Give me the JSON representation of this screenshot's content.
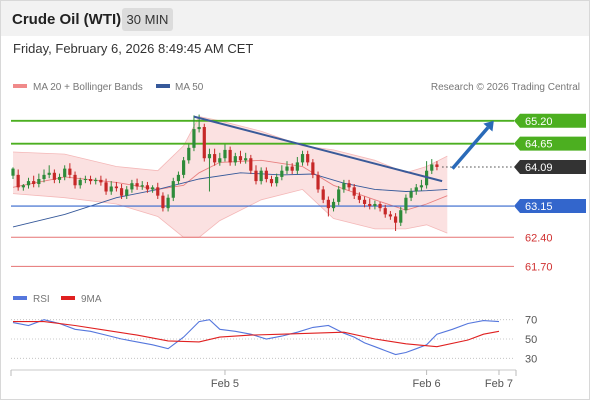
{
  "header": {
    "title": "Crude Oil (WTI)",
    "timeframe": "30 MIN"
  },
  "datetime": "Friday, February 6, 2026 8:49:45 AM CET",
  "legend": {
    "ma20": "MA 20 + Bollinger Bands",
    "ma50": "MA 50",
    "credit": "Research © 2026 Trading Central"
  },
  "rsi_legend": {
    "rsi": "RSI",
    "ma9": "9MA"
  },
  "colors": {
    "up": "#2e8b3a",
    "down": "#c62828",
    "resistance": "#4caf20",
    "support": "#3366cc",
    "red_level": "#e57373",
    "current": "#333333",
    "ma50": "#36599a",
    "band": "#fadcdc",
    "trend": "#3a5a99",
    "arrow": "#2a6ab8",
    "rsi": "#5577dd",
    "rsi_ma": "#e02020"
  },
  "chart_data": [
    {
      "type": "candlestick",
      "ylim": [
        61.3,
        65.7
      ],
      "levels": [
        {
          "label": "65.20",
          "value": 65.2,
          "kind": "resistance"
        },
        {
          "label": "64.65",
          "value": 64.65,
          "kind": "resistance"
        },
        {
          "label": "64.09",
          "value": 64.09,
          "kind": "current"
        },
        {
          "label": "63.15",
          "value": 63.15,
          "kind": "support"
        },
        {
          "label": "62.40",
          "value": 62.4,
          "kind": "red"
        },
        {
          "label": "61.70",
          "value": 61.7,
          "kind": "red"
        }
      ],
      "x_ticks": [
        {
          "label": "Feb 5",
          "index": 41
        },
        {
          "label": "Feb 6",
          "index": 80
        },
        {
          "label": "Feb 7",
          "index": 94
        }
      ],
      "candles": [
        [
          63.88,
          64.05,
          63.9
        ],
        [
          63.9,
          63.6,
          64.0
        ],
        [
          63.6,
          63.65,
          63.5
        ],
        [
          63.65,
          63.75,
          63.8
        ],
        [
          63.75,
          63.68,
          63.85
        ],
        [
          63.68,
          63.8,
          63.9
        ],
        [
          63.8,
          63.9,
          64.0
        ],
        [
          63.9,
          63.95,
          64.1
        ],
        [
          63.95,
          63.78,
          64.0
        ],
        [
          63.78,
          63.85,
          63.9
        ],
        [
          63.85,
          64.05,
          64.1
        ],
        [
          64.05,
          63.9,
          64.15
        ],
        [
          63.9,
          63.65,
          63.95
        ],
        [
          63.65,
          63.78,
          63.8
        ],
        [
          63.78,
          63.8,
          63.85
        ],
        [
          63.8,
          63.75,
          63.85
        ],
        [
          63.75,
          63.78,
          63.8
        ],
        [
          63.78,
          63.72,
          63.85
        ],
        [
          63.72,
          63.5,
          63.78
        ],
        [
          63.5,
          63.62,
          63.72
        ],
        [
          63.62,
          63.58,
          63.7
        ],
        [
          63.58,
          63.4,
          63.65
        ],
        [
          63.4,
          63.55,
          63.6
        ],
        [
          63.55,
          63.7,
          63.75
        ],
        [
          63.7,
          63.62,
          63.78
        ],
        [
          63.62,
          63.65,
          63.72
        ],
        [
          63.65,
          63.55,
          63.7
        ],
        [
          63.55,
          63.6,
          63.62
        ],
        [
          63.6,
          63.4,
          63.68
        ],
        [
          63.4,
          63.1,
          63.45
        ],
        [
          63.1,
          63.35,
          63.4
        ],
        [
          63.35,
          63.75,
          63.8
        ],
        [
          63.75,
          63.9,
          63.95
        ],
        [
          63.9,
          64.25,
          64.3
        ],
        [
          64.25,
          64.55,
          64.6
        ],
        [
          64.55,
          65.0,
          65.3
        ],
        [
          65.0,
          65.05,
          65.1
        ],
        [
          65.05,
          64.3,
          65.1
        ],
        [
          64.3,
          64.4,
          64.5
        ],
        [
          64.4,
          64.2,
          64.5
        ],
        [
          64.2,
          64.3,
          64.4
        ],
        [
          64.3,
          64.5,
          64.6
        ],
        [
          64.5,
          64.2,
          64.55
        ],
        [
          64.2,
          64.35,
          64.4
        ],
        [
          64.35,
          64.25,
          64.45
        ],
        [
          64.25,
          64.3,
          64.4
        ],
        [
          64.3,
          64.0,
          64.35
        ],
        [
          64.0,
          63.75,
          64.1
        ],
        [
          63.75,
          64.0,
          64.05
        ],
        [
          64.0,
          63.8,
          64.05
        ],
        [
          63.8,
          63.7,
          63.85
        ],
        [
          63.7,
          63.85,
          63.9
        ],
        [
          63.85,
          64.0,
          64.1
        ],
        [
          64.0,
          64.1,
          64.2
        ],
        [
          64.1,
          64.0,
          64.15
        ],
        [
          64.0,
          64.2,
          64.3
        ],
        [
          64.2,
          64.4,
          64.45
        ],
        [
          64.4,
          64.2,
          64.45
        ],
        [
          64.2,
          63.9,
          64.25
        ],
        [
          63.9,
          63.55,
          63.95
        ],
        [
          63.55,
          63.3,
          63.6
        ],
        [
          63.3,
          63.1,
          63.35
        ],
        [
          63.1,
          63.25,
          63.3
        ],
        [
          63.25,
          63.55,
          63.6
        ],
        [
          63.55,
          63.7,
          63.75
        ],
        [
          63.7,
          63.6,
          63.75
        ],
        [
          63.6,
          63.4,
          63.65
        ],
        [
          63.4,
          63.3,
          63.45
        ],
        [
          63.3,
          63.2,
          63.35
        ],
        [
          63.2,
          63.15,
          63.3
        ],
        [
          63.15,
          63.2,
          63.25
        ],
        [
          63.2,
          63.1,
          63.22
        ],
        [
          63.1,
          62.95,
          63.15
        ],
        [
          62.95,
          62.9,
          63.0
        ],
        [
          62.9,
          62.75,
          62.95
        ],
        [
          62.75,
          63.05,
          63.1
        ],
        [
          63.05,
          63.35,
          63.4
        ],
        [
          63.35,
          63.5,
          63.55
        ],
        [
          63.5,
          63.6,
          63.65
        ],
        [
          63.6,
          63.65,
          63.75
        ],
        [
          63.65,
          64.0,
          64.2
        ],
        [
          64.0,
          64.15,
          64.25
        ],
        [
          64.15,
          64.09,
          64.2
        ]
      ],
      "candle_extremes": [
        {
          "index": 36,
          "high": 65.35
        },
        {
          "index": 38,
          "low": 63.5
        },
        {
          "index": 61,
          "low": 62.9
        },
        {
          "index": 74,
          "low": 62.55
        }
      ],
      "bb_upper": [
        [
          0,
          64.45
        ],
        [
          10,
          64.4
        ],
        [
          20,
          64.1
        ],
        [
          28,
          64.0
        ],
        [
          33,
          64.6
        ],
        [
          36,
          65.3
        ],
        [
          40,
          65.2
        ],
        [
          48,
          64.95
        ],
        [
          56,
          64.6
        ],
        [
          62,
          64.5
        ],
        [
          70,
          64.25
        ],
        [
          76,
          63.95
        ],
        [
          80,
          64.1
        ],
        [
          84,
          64.35
        ]
      ],
      "bb_lower": [
        [
          0,
          63.45
        ],
        [
          10,
          63.35
        ],
        [
          20,
          63.2
        ],
        [
          28,
          62.9
        ],
        [
          33,
          62.4
        ],
        [
          36,
          62.4
        ],
        [
          40,
          62.8
        ],
        [
          48,
          63.3
        ],
        [
          56,
          63.55
        ],
        [
          62,
          62.85
        ],
        [
          70,
          62.6
        ],
        [
          76,
          62.6
        ],
        [
          80,
          62.7
        ],
        [
          84,
          62.5
        ]
      ],
      "ma20": [
        [
          0,
          63.6
        ],
        [
          10,
          63.85
        ],
        [
          20,
          63.72
        ],
        [
          28,
          63.55
        ],
        [
          33,
          63.65
        ],
        [
          36,
          63.95
        ],
        [
          40,
          64.2
        ],
        [
          48,
          64.25
        ],
        [
          56,
          64.1
        ],
        [
          62,
          63.65
        ],
        [
          70,
          63.3
        ],
        [
          76,
          63.05
        ],
        [
          80,
          63.2
        ],
        [
          84,
          63.4
        ]
      ],
      "ma50": [
        [
          0,
          62.65
        ],
        [
          10,
          62.95
        ],
        [
          20,
          63.35
        ],
        [
          28,
          63.55
        ],
        [
          36,
          63.8
        ],
        [
          44,
          63.95
        ],
        [
          52,
          63.9
        ],
        [
          58,
          63.92
        ],
        [
          64,
          63.7
        ],
        [
          70,
          63.55
        ],
        [
          76,
          63.5
        ],
        [
          80,
          63.52
        ],
        [
          84,
          63.55
        ]
      ],
      "trendline": [
        [
          35,
          65.3
        ],
        [
          83,
          63.75
        ]
      ],
      "projection": [
        [
          85,
          64.05
        ],
        [
          93,
          65.2
        ]
      ]
    },
    {
      "type": "line",
      "ylim": [
        20,
        80
      ],
      "ticks": [
        70,
        50,
        30
      ],
      "series": [
        {
          "name": "RSI",
          "values": [
            [
              0,
              67
            ],
            [
              3,
              64
            ],
            [
              6,
              70
            ],
            [
              9,
              66
            ],
            [
              12,
              60
            ],
            [
              15,
              58
            ],
            [
              18,
              54
            ],
            [
              21,
              50
            ],
            [
              24,
              47
            ],
            [
              27,
              44
            ],
            [
              30,
              40
            ],
            [
              33,
              52
            ],
            [
              36,
              68
            ],
            [
              38,
              70
            ],
            [
              40,
              60
            ],
            [
              43,
              58
            ],
            [
              46,
              55
            ],
            [
              49,
              50
            ],
            [
              52,
              53
            ],
            [
              55,
              57
            ],
            [
              58,
              62
            ],
            [
              61,
              64
            ],
            [
              64,
              56
            ],
            [
              66,
              52
            ],
            [
              68,
              46
            ],
            [
              70,
              42
            ],
            [
              72,
              38
            ],
            [
              74,
              34
            ],
            [
              76,
              36
            ],
            [
              78,
              40
            ],
            [
              80,
              44
            ],
            [
              82,
              55
            ],
            [
              85,
              60
            ],
            [
              88,
              66
            ],
            [
              91,
              69
            ],
            [
              94,
              68
            ]
          ]
        },
        {
          "name": "9MA",
          "values": [
            [
              0,
              68
            ],
            [
              6,
              68
            ],
            [
              12,
              64
            ],
            [
              18,
              59
            ],
            [
              24,
              54
            ],
            [
              30,
              48
            ],
            [
              36,
              47
            ],
            [
              40,
              52
            ],
            [
              46,
              54
            ],
            [
              52,
              55
            ],
            [
              58,
              56
            ],
            [
              64,
              57
            ],
            [
              70,
              50
            ],
            [
              76,
              45
            ],
            [
              82,
              42
            ],
            [
              88,
              49
            ],
            [
              91,
              55
            ],
            [
              94,
              58
            ]
          ]
        }
      ]
    }
  ]
}
